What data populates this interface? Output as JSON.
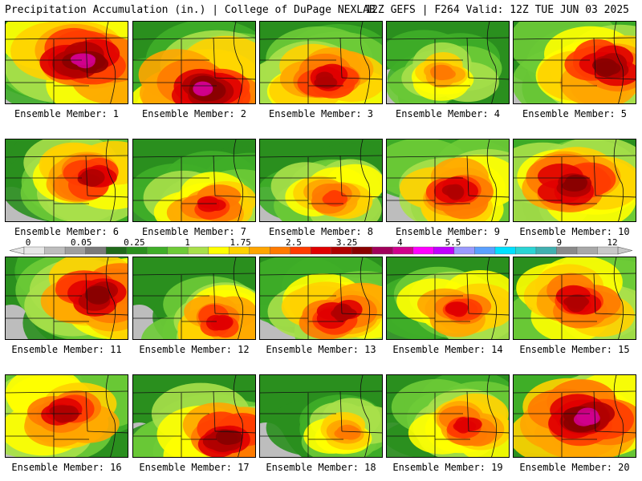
{
  "header": {
    "title_left": "Precipitation Accumulation (in.) | College of DuPage NEXLAB",
    "title_right": "12Z GEFS | F264 Valid: 12Z TUE JUN 03 2025"
  },
  "colorbar": {
    "labels": [
      "0",
      "0.05",
      "0.25",
      "1",
      "1.75",
      "2.5",
      "3.25",
      "4",
      "5.5",
      "7",
      "9",
      "12"
    ],
    "colors": [
      "#e6e6e6",
      "#bdbdbd",
      "#9e9e9e",
      "#7a7a7a",
      "#1f6a1a",
      "#2a8f1e",
      "#3fae28",
      "#6ecb37",
      "#a8e04a",
      "#ffff00",
      "#ffd200",
      "#ffa500",
      "#ff7a00",
      "#ff3c00",
      "#e00000",
      "#b00000",
      "#8a0000",
      "#a0005a",
      "#d0008c",
      "#ff00ff",
      "#c000ff",
      "#9a9aff",
      "#5aa0ff",
      "#00e0ff",
      "#2ad4d4",
      "#40b0b0",
      "#8a8a8a",
      "#a8a8a8",
      "#c8c8c8"
    ]
  },
  "members": [
    {
      "caption": "Ensemble Member: 1",
      "intensity": 0.8
    },
    {
      "caption": "Ensemble Member: 2",
      "intensity": 0.85
    },
    {
      "caption": "Ensemble Member: 3",
      "intensity": 0.65
    },
    {
      "caption": "Ensemble Member: 4",
      "intensity": 0.4
    },
    {
      "caption": "Ensemble Member: 5",
      "intensity": 0.75
    },
    {
      "caption": "Ensemble Member: 6",
      "intensity": 0.6
    },
    {
      "caption": "Ensemble Member: 7",
      "intensity": 0.5
    },
    {
      "caption": "Ensemble Member: 8",
      "intensity": 0.45
    },
    {
      "caption": "Ensemble Member: 9",
      "intensity": 0.6
    },
    {
      "caption": "Ensemble Member: 10",
      "intensity": 0.7
    },
    {
      "caption": "Ensemble Member: 11",
      "intensity": 0.7
    },
    {
      "caption": "Ensemble Member: 12",
      "intensity": 0.55
    },
    {
      "caption": "Ensemble Member: 13",
      "intensity": 0.6
    },
    {
      "caption": "Ensemble Member: 14",
      "intensity": 0.55
    },
    {
      "caption": "Ensemble Member: 15",
      "intensity": 0.65
    },
    {
      "caption": "Ensemble Member: 16",
      "intensity": 0.6
    },
    {
      "caption": "Ensemble Member: 17",
      "intensity": 0.75
    },
    {
      "caption": "Ensemble Member: 18",
      "intensity": 0.35
    },
    {
      "caption": "Ensemble Member: 19",
      "intensity": 0.55
    },
    {
      "caption": "Ensemble Member: 20",
      "intensity": 0.85
    }
  ]
}
